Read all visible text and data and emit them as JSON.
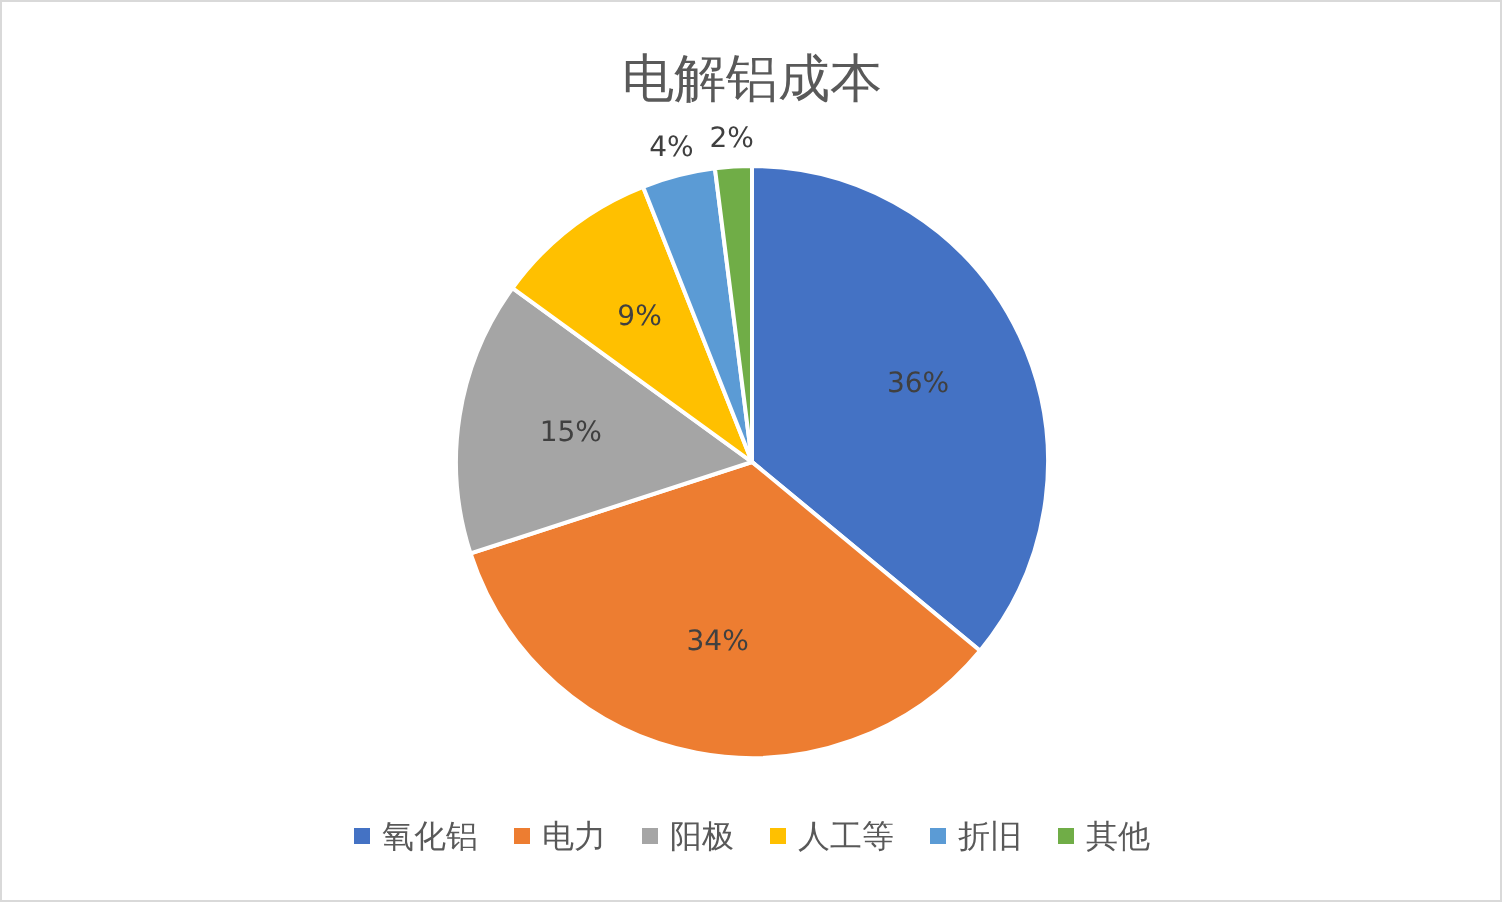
{
  "chart_data": {
    "type": "pie",
    "title": "电解铝成本",
    "categories": [
      "氧化铝",
      "电力",
      "阳极",
      "人工等",
      "折旧",
      "其他"
    ],
    "values": [
      36,
      34,
      15,
      9,
      4,
      2
    ],
    "colors": [
      "#4472c4",
      "#ed7d31",
      "#a5a5a5",
      "#ffc000",
      "#5b9bd5",
      "#70ad47"
    ],
    "value_labels": [
      "36%",
      "34%",
      "15%",
      "9%",
      "4%",
      "2%"
    ],
    "legend": "bottom"
  }
}
